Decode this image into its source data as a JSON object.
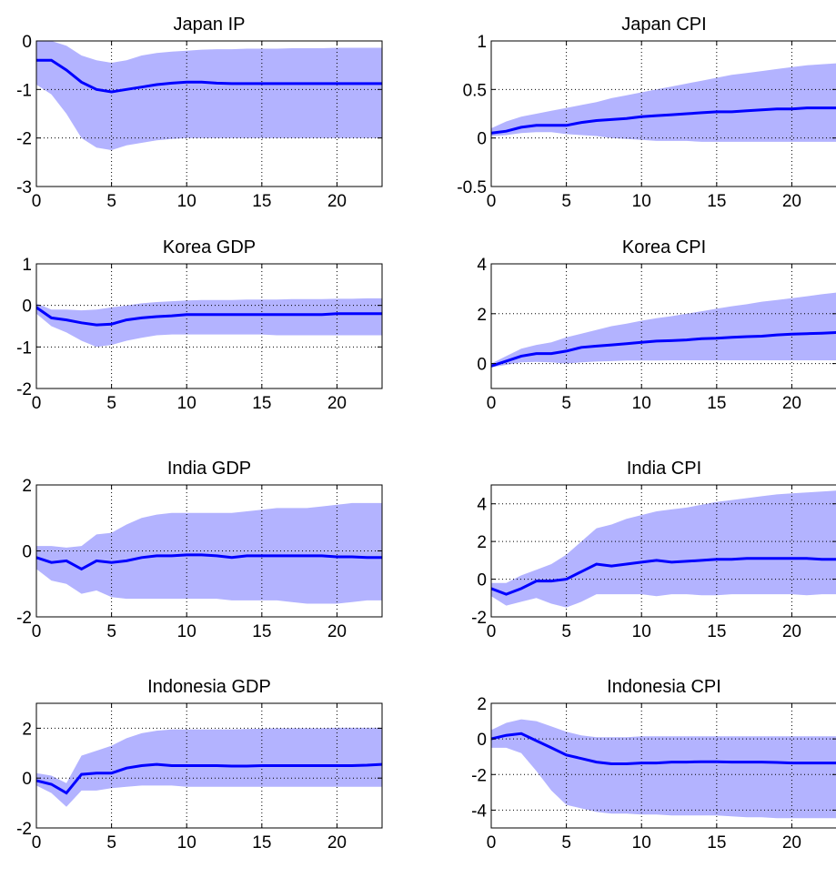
{
  "figure": {
    "colors": {
      "line": "#0000ff",
      "band": "#b3b3ff",
      "axes": "#000000",
      "grid": "#000000",
      "background": "#ffffff"
    }
  },
  "chart_data": [
    {
      "type": "area",
      "title": "Japan IP",
      "xlabel": "",
      "ylabel": "",
      "xlim": [
        0,
        23
      ],
      "ylim": [
        -3,
        0
      ],
      "xticks": [
        0,
        5,
        10,
        15,
        20
      ],
      "yticks": [
        -3,
        -2,
        -1,
        0
      ],
      "xtick_labels": [
        "0",
        "5",
        "10",
        "15",
        "20"
      ],
      "ytick_labels": [
        "-3",
        "-2",
        "-1",
        "0"
      ],
      "grid": true,
      "x": [
        0,
        1,
        2,
        3,
        4,
        5,
        6,
        7,
        8,
        9,
        10,
        11,
        12,
        13,
        14,
        15,
        16,
        17,
        18,
        19,
        20,
        21,
        22,
        23
      ],
      "series": [
        {
          "role": "median",
          "values": [
            -0.4,
            -0.4,
            -0.6,
            -0.85,
            -1.0,
            -1.05,
            -1.0,
            -0.95,
            -0.9,
            -0.87,
            -0.85,
            -0.85,
            -0.87,
            -0.88,
            -0.88,
            -0.88,
            -0.88,
            -0.88,
            -0.88,
            -0.88,
            -0.88,
            -0.88,
            -0.88,
            -0.88
          ]
        },
        {
          "role": "upper",
          "values": [
            0.0,
            0.0,
            -0.1,
            -0.3,
            -0.4,
            -0.45,
            -0.4,
            -0.3,
            -0.25,
            -0.22,
            -0.2,
            -0.18,
            -0.17,
            -0.17,
            -0.16,
            -0.16,
            -0.16,
            -0.15,
            -0.15,
            -0.15,
            -0.14,
            -0.14,
            -0.14,
            -0.14
          ]
        },
        {
          "role": "lower",
          "values": [
            -0.9,
            -1.1,
            -1.5,
            -2.0,
            -2.2,
            -2.25,
            -2.15,
            -2.1,
            -2.05,
            -2.02,
            -2.0,
            -2.0,
            -2.0,
            -2.0,
            -2.0,
            -2.0,
            -2.0,
            -2.0,
            -2.0,
            -2.0,
            -2.0,
            -2.0,
            -2.0,
            -2.0
          ]
        }
      ]
    },
    {
      "type": "area",
      "title": "Japan CPI",
      "xlabel": "",
      "ylabel": "",
      "xlim": [
        0,
        23
      ],
      "ylim": [
        -0.5,
        1
      ],
      "xticks": [
        0,
        5,
        10,
        15,
        20
      ],
      "yticks": [
        -0.5,
        0,
        0.5,
        1
      ],
      "xtick_labels": [
        "0",
        "5",
        "10",
        "15",
        "20"
      ],
      "ytick_labels": [
        "-0.5",
        "0",
        "0.5",
        "1"
      ],
      "grid": true,
      "x": [
        0,
        1,
        2,
        3,
        4,
        5,
        6,
        7,
        8,
        9,
        10,
        11,
        12,
        13,
        14,
        15,
        16,
        17,
        18,
        19,
        20,
        21,
        22,
        23
      ],
      "series": [
        {
          "role": "median",
          "values": [
            0.05,
            0.07,
            0.11,
            0.13,
            0.13,
            0.13,
            0.16,
            0.18,
            0.19,
            0.2,
            0.22,
            0.23,
            0.24,
            0.25,
            0.26,
            0.27,
            0.27,
            0.28,
            0.29,
            0.3,
            0.3,
            0.31,
            0.31,
            0.31
          ]
        },
        {
          "role": "upper",
          "values": [
            0.1,
            0.17,
            0.22,
            0.25,
            0.28,
            0.31,
            0.34,
            0.37,
            0.41,
            0.44,
            0.47,
            0.5,
            0.53,
            0.56,
            0.59,
            0.62,
            0.65,
            0.67,
            0.69,
            0.71,
            0.73,
            0.75,
            0.76,
            0.77
          ]
        },
        {
          "role": "lower",
          "values": [
            0.02,
            0.03,
            0.05,
            0.06,
            0.06,
            0.04,
            0.03,
            0.02,
            0.0,
            -0.01,
            -0.02,
            -0.03,
            -0.03,
            -0.03,
            -0.04,
            -0.04,
            -0.04,
            -0.04,
            -0.04,
            -0.04,
            -0.04,
            -0.04,
            -0.04,
            -0.04
          ]
        }
      ]
    },
    {
      "type": "area",
      "title": "Korea GDP",
      "xlabel": "",
      "ylabel": "",
      "xlim": [
        0,
        23
      ],
      "ylim": [
        -2,
        1
      ],
      "xticks": [
        0,
        5,
        10,
        15,
        20
      ],
      "yticks": [
        -2,
        -1,
        0,
        1
      ],
      "xtick_labels": [
        "0",
        "5",
        "10",
        "15",
        "20"
      ],
      "ytick_labels": [
        "-2",
        "-1",
        "0",
        "1"
      ],
      "grid": true,
      "x": [
        0,
        1,
        2,
        3,
        4,
        5,
        6,
        7,
        8,
        9,
        10,
        11,
        12,
        13,
        14,
        15,
        16,
        17,
        18,
        19,
        20,
        21,
        22,
        23
      ],
      "series": [
        {
          "role": "median",
          "values": [
            -0.05,
            -0.3,
            -0.35,
            -0.42,
            -0.47,
            -0.45,
            -0.35,
            -0.3,
            -0.27,
            -0.25,
            -0.22,
            -0.22,
            -0.22,
            -0.22,
            -0.22,
            -0.22,
            -0.22,
            -0.22,
            -0.22,
            -0.22,
            -0.2,
            -0.2,
            -0.2,
            -0.2
          ]
        },
        {
          "role": "upper",
          "values": [
            0.05,
            -0.1,
            -0.1,
            -0.12,
            -0.1,
            -0.05,
            0.0,
            0.05,
            0.08,
            0.1,
            0.12,
            0.13,
            0.13,
            0.13,
            0.14,
            0.14,
            0.14,
            0.15,
            0.15,
            0.15,
            0.16,
            0.16,
            0.17,
            0.17
          ]
        },
        {
          "role": "lower",
          "values": [
            -0.2,
            -0.5,
            -0.65,
            -0.85,
            -1.0,
            -0.95,
            -0.85,
            -0.78,
            -0.72,
            -0.7,
            -0.7,
            -0.7,
            -0.7,
            -0.7,
            -0.7,
            -0.7,
            -0.72,
            -0.72,
            -0.72,
            -0.72,
            -0.72,
            -0.72,
            -0.72,
            -0.72
          ]
        }
      ]
    },
    {
      "type": "area",
      "title": "Korea CPI",
      "xlabel": "",
      "ylabel": "",
      "xlim": [
        0,
        23
      ],
      "ylim": [
        -1,
        4
      ],
      "xticks": [
        0,
        5,
        10,
        15,
        20
      ],
      "yticks": [
        0,
        2,
        4
      ],
      "xtick_labels": [
        "0",
        "5",
        "10",
        "15",
        "20"
      ],
      "ytick_labels": [
        "0",
        "2",
        "4"
      ],
      "grid": true,
      "x": [
        0,
        1,
        2,
        3,
        4,
        5,
        6,
        7,
        8,
        9,
        10,
        11,
        12,
        13,
        14,
        15,
        16,
        17,
        18,
        19,
        20,
        21,
        22,
        23
      ],
      "series": [
        {
          "role": "median",
          "values": [
            -0.1,
            0.1,
            0.3,
            0.4,
            0.4,
            0.5,
            0.65,
            0.7,
            0.75,
            0.8,
            0.85,
            0.9,
            0.92,
            0.95,
            1.0,
            1.02,
            1.05,
            1.08,
            1.1,
            1.15,
            1.18,
            1.2,
            1.22,
            1.25
          ]
        },
        {
          "role": "upper",
          "values": [
            0.0,
            0.3,
            0.6,
            0.75,
            0.85,
            1.05,
            1.2,
            1.35,
            1.5,
            1.6,
            1.72,
            1.82,
            1.9,
            2.0,
            2.1,
            2.2,
            2.3,
            2.38,
            2.48,
            2.55,
            2.62,
            2.7,
            2.78,
            2.85
          ]
        },
        {
          "role": "lower",
          "values": [
            -0.15,
            -0.05,
            0.05,
            0.07,
            0.05,
            0.0,
            0.05,
            0.08,
            0.1,
            0.12,
            0.12,
            0.12,
            0.13,
            0.13,
            0.13,
            0.13,
            0.13,
            0.13,
            0.13,
            0.13,
            0.13,
            0.13,
            0.13,
            0.13
          ]
        }
      ]
    },
    {
      "type": "area",
      "title": "India GDP",
      "xlabel": "",
      "ylabel": "",
      "xlim": [
        0,
        23
      ],
      "ylim": [
        -2,
        2
      ],
      "xticks": [
        0,
        5,
        10,
        15,
        20
      ],
      "yticks": [
        -2,
        0,
        2
      ],
      "xtick_labels": [
        "0",
        "5",
        "10",
        "15",
        "20"
      ],
      "ytick_labels": [
        "-2",
        "0",
        "2"
      ],
      "grid": true,
      "x": [
        0,
        1,
        2,
        3,
        4,
        5,
        6,
        7,
        8,
        9,
        10,
        11,
        12,
        13,
        14,
        15,
        16,
        17,
        18,
        19,
        20,
        21,
        22,
        23
      ],
      "series": [
        {
          "role": "median",
          "values": [
            -0.2,
            -0.35,
            -0.3,
            -0.55,
            -0.3,
            -0.35,
            -0.3,
            -0.2,
            -0.15,
            -0.15,
            -0.12,
            -0.12,
            -0.15,
            -0.2,
            -0.15,
            -0.15,
            -0.15,
            -0.15,
            -0.15,
            -0.15,
            -0.18,
            -0.18,
            -0.2,
            -0.2
          ]
        },
        {
          "role": "upper",
          "values": [
            0.15,
            0.15,
            0.1,
            0.15,
            0.5,
            0.55,
            0.8,
            1.0,
            1.1,
            1.15,
            1.15,
            1.15,
            1.15,
            1.15,
            1.2,
            1.25,
            1.3,
            1.3,
            1.3,
            1.35,
            1.4,
            1.45,
            1.45,
            1.45
          ]
        },
        {
          "role": "lower",
          "values": [
            -0.55,
            -0.9,
            -1.0,
            -1.3,
            -1.2,
            -1.4,
            -1.45,
            -1.45,
            -1.45,
            -1.45,
            -1.45,
            -1.45,
            -1.45,
            -1.5,
            -1.5,
            -1.5,
            -1.5,
            -1.55,
            -1.6,
            -1.6,
            -1.6,
            -1.55,
            -1.5,
            -1.5
          ]
        }
      ]
    },
    {
      "type": "area",
      "title": "India CPI",
      "xlabel": "",
      "ylabel": "",
      "xlim": [
        0,
        23
      ],
      "ylim": [
        -2,
        5
      ],
      "xticks": [
        0,
        5,
        10,
        15,
        20
      ],
      "yticks": [
        -2,
        0,
        2,
        4
      ],
      "xtick_labels": [
        "0",
        "5",
        "10",
        "15",
        "20"
      ],
      "ytick_labels": [
        "-2",
        "0",
        "2",
        "4"
      ],
      "grid": true,
      "x": [
        0,
        1,
        2,
        3,
        4,
        5,
        6,
        7,
        8,
        9,
        10,
        11,
        12,
        13,
        14,
        15,
        16,
        17,
        18,
        19,
        20,
        21,
        22,
        23
      ],
      "series": [
        {
          "role": "median",
          "values": [
            -0.5,
            -0.8,
            -0.5,
            -0.1,
            -0.1,
            0.0,
            0.4,
            0.8,
            0.7,
            0.8,
            0.9,
            1.0,
            0.9,
            0.95,
            1.0,
            1.05,
            1.05,
            1.1,
            1.1,
            1.1,
            1.1,
            1.1,
            1.05,
            1.05
          ]
        },
        {
          "role": "upper",
          "values": [
            -0.2,
            -0.2,
            0.2,
            0.5,
            0.8,
            1.3,
            2.0,
            2.7,
            2.9,
            3.2,
            3.4,
            3.6,
            3.7,
            3.8,
            3.95,
            4.1,
            4.2,
            4.3,
            4.4,
            4.5,
            4.55,
            4.6,
            4.65,
            4.7
          ]
        },
        {
          "role": "lower",
          "values": [
            -0.9,
            -1.4,
            -1.2,
            -1.0,
            -1.3,
            -1.5,
            -1.2,
            -0.8,
            -0.8,
            -0.8,
            -0.8,
            -0.9,
            -0.8,
            -0.8,
            -0.85,
            -0.85,
            -0.8,
            -0.8,
            -0.8,
            -0.8,
            -0.8,
            -0.85,
            -0.8,
            -0.8
          ]
        }
      ]
    },
    {
      "type": "area",
      "title": "Indonesia GDP",
      "xlabel": "",
      "ylabel": "",
      "xlim": [
        0,
        23
      ],
      "ylim": [
        -2,
        3
      ],
      "xticks": [
        0,
        5,
        10,
        15,
        20
      ],
      "yticks": [
        -2,
        0,
        2
      ],
      "xtick_labels": [
        "0",
        "5",
        "10",
        "15",
        "20"
      ],
      "ytick_labels": [
        "-2",
        "0",
        "2"
      ],
      "grid": true,
      "x": [
        0,
        1,
        2,
        3,
        4,
        5,
        6,
        7,
        8,
        9,
        10,
        11,
        12,
        13,
        14,
        15,
        16,
        17,
        18,
        19,
        20,
        21,
        22,
        23
      ],
      "series": [
        {
          "role": "median",
          "values": [
            -0.1,
            -0.25,
            -0.6,
            0.15,
            0.2,
            0.2,
            0.4,
            0.5,
            0.55,
            0.5,
            0.5,
            0.5,
            0.5,
            0.48,
            0.48,
            0.5,
            0.5,
            0.5,
            0.5,
            0.5,
            0.5,
            0.5,
            0.52,
            0.55
          ]
        },
        {
          "role": "upper",
          "values": [
            0.2,
            0.1,
            -0.2,
            0.9,
            1.1,
            1.3,
            1.6,
            1.8,
            1.9,
            1.95,
            1.95,
            1.95,
            1.95,
            1.95,
            1.97,
            1.98,
            2.0,
            2.0,
            2.0,
            2.0,
            2.02,
            2.02,
            2.02,
            2.02
          ]
        },
        {
          "role": "lower",
          "values": [
            -0.3,
            -0.6,
            -1.15,
            -0.5,
            -0.5,
            -0.4,
            -0.35,
            -0.3,
            -0.3,
            -0.3,
            -0.35,
            -0.35,
            -0.35,
            -0.35,
            -0.35,
            -0.35,
            -0.35,
            -0.35,
            -0.35,
            -0.35,
            -0.35,
            -0.35,
            -0.35,
            -0.35
          ]
        }
      ]
    },
    {
      "type": "area",
      "title": "Indonesia CPI",
      "xlabel": "",
      "ylabel": "",
      "xlim": [
        0,
        23
      ],
      "ylim": [
        -5,
        2
      ],
      "xticks": [
        0,
        5,
        10,
        15,
        20
      ],
      "yticks": [
        -4,
        -2,
        0,
        2
      ],
      "xtick_labels": [
        "0",
        "5",
        "10",
        "15",
        "20"
      ],
      "ytick_labels": [
        "-4",
        "-2",
        "0",
        "2"
      ],
      "grid": true,
      "x": [
        0,
        1,
        2,
        3,
        4,
        5,
        6,
        7,
        8,
        9,
        10,
        11,
        12,
        13,
        14,
        15,
        16,
        17,
        18,
        19,
        20,
        21,
        22,
        23
      ],
      "series": [
        {
          "role": "median",
          "values": [
            0.0,
            0.2,
            0.3,
            -0.1,
            -0.5,
            -0.9,
            -1.1,
            -1.3,
            -1.4,
            -1.4,
            -1.35,
            -1.35,
            -1.3,
            -1.3,
            -1.28,
            -1.28,
            -1.3,
            -1.3,
            -1.3,
            -1.32,
            -1.35,
            -1.35,
            -1.35,
            -1.35
          ]
        },
        {
          "role": "upper",
          "values": [
            0.5,
            0.9,
            1.1,
            1.0,
            0.7,
            0.4,
            0.2,
            0.1,
            0.1,
            0.1,
            0.15,
            0.15,
            0.15,
            0.15,
            0.15,
            0.15,
            0.15,
            0.15,
            0.15,
            0.15,
            0.15,
            0.15,
            0.15,
            0.15
          ]
        },
        {
          "role": "lower",
          "values": [
            -0.5,
            -0.5,
            -0.8,
            -1.8,
            -2.9,
            -3.7,
            -3.9,
            -4.1,
            -4.2,
            -4.2,
            -4.25,
            -4.25,
            -4.3,
            -4.3,
            -4.3,
            -4.3,
            -4.35,
            -4.4,
            -4.4,
            -4.45,
            -4.45,
            -4.45,
            -4.45,
            -4.45
          ]
        }
      ]
    }
  ]
}
